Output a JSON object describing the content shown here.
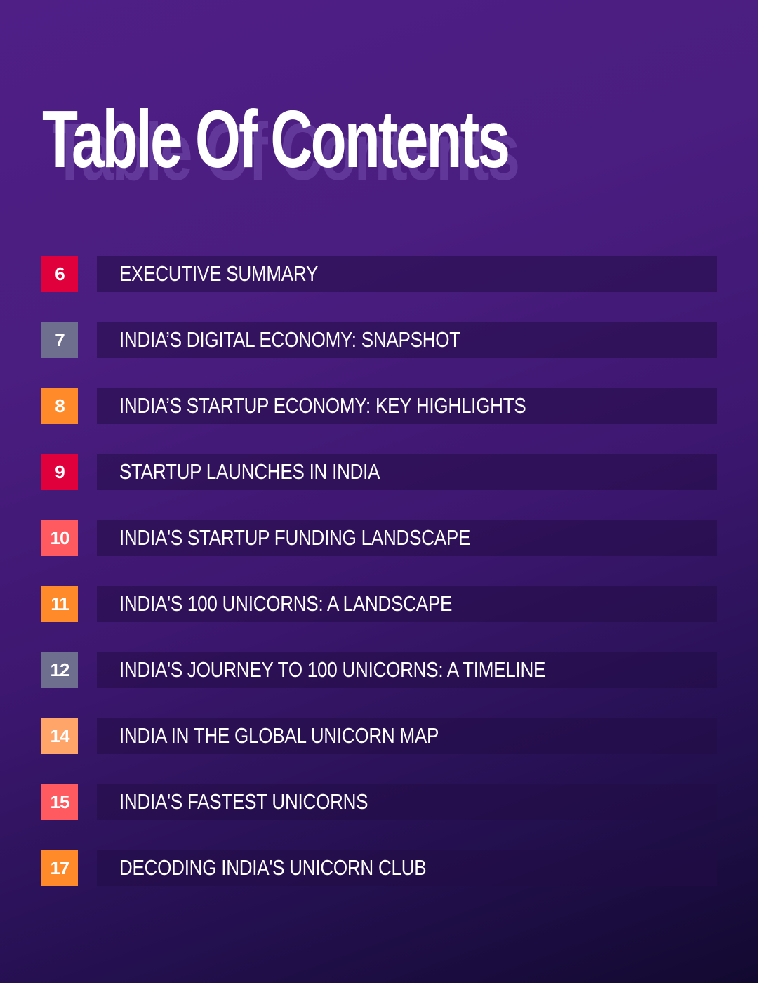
{
  "title": "Table Of Contents",
  "colors": {
    "red": "#e0003c",
    "slate": "#6e6f8f",
    "orange": "#ff8a2a",
    "coral": "#ff5a5f",
    "peach": "#ffa56a"
  },
  "items": [
    {
      "page": "6",
      "label": "EXECUTIVE SUMMARY",
      "color": "#e0003c"
    },
    {
      "page": "7",
      "label": "INDIA’S DIGITAL ECONOMY: SNAPSHOT",
      "color": "#6e6f8f"
    },
    {
      "page": "8",
      "label": "INDIA’S STARTUP ECONOMY: KEY HIGHLIGHTS",
      "color": "#ff8a2a"
    },
    {
      "page": "9",
      "label": "STARTUP LAUNCHES IN INDIA",
      "color": "#e0003c"
    },
    {
      "page": "10",
      "label": "INDIA'S STARTUP FUNDING LANDSCAPE",
      "color": "#ff5a5f"
    },
    {
      "page": "11",
      "label": "INDIA'S 100 UNICORNS: A LANDSCAPE",
      "color": "#ff8a2a"
    },
    {
      "page": "12",
      "label": "INDIA'S JOURNEY TO 100 UNICORNS: A TIMELINE",
      "color": "#6e6f8f"
    },
    {
      "page": "14",
      "label": "INDIA IN THE GLOBAL UNICORN MAP",
      "color": "#ffa56a"
    },
    {
      "page": "15",
      "label": "INDIA'S FASTEST UNICORNS",
      "color": "#ff5a5f"
    },
    {
      "page": "17",
      "label": "DECODING INDIA'S UNICORN CLUB",
      "color": "#ff8a2a"
    }
  ]
}
